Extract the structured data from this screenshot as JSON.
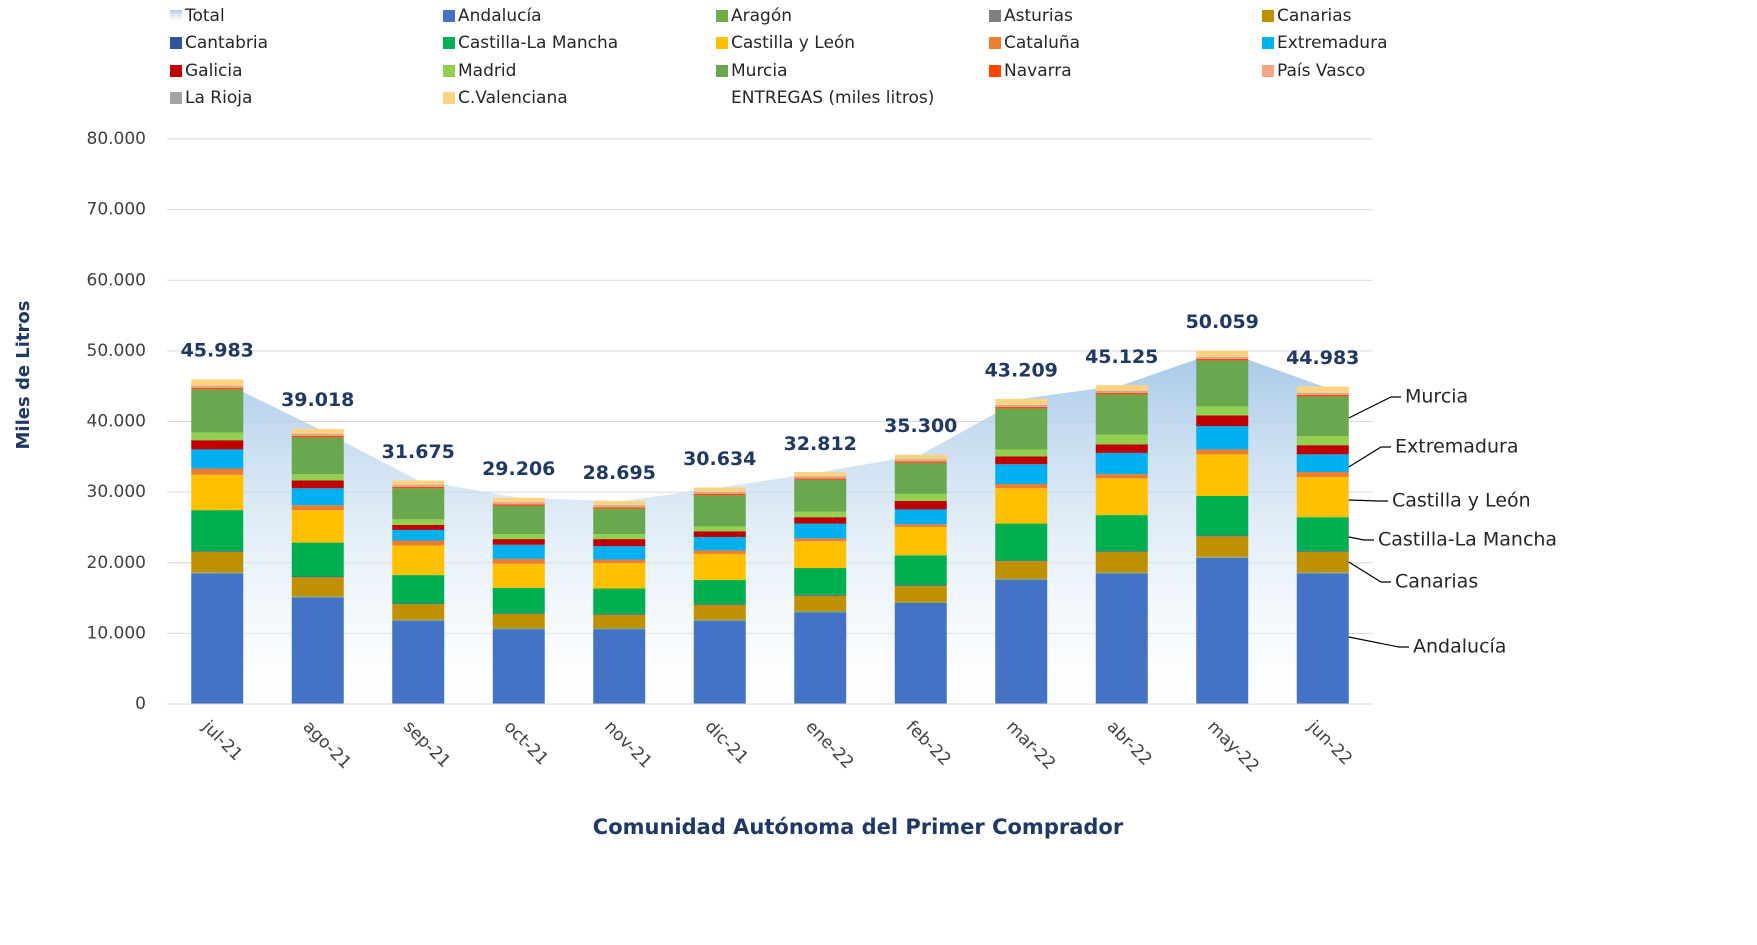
{
  "chart_data": {
    "type": "stacked_bar",
    "x_label": "Comunidad Autónoma del Primer Comprador",
    "y_label": "Miles de Litros",
    "legend_extra": "ENTREGAS (miles litros)",
    "categories": [
      "jul-21",
      "ago-21",
      "sep-21",
      "oct-21",
      "nov-21",
      "dic-21",
      "ene-22",
      "feb-22",
      "mar-22",
      "abr-22",
      "may-22",
      "jun-22"
    ],
    "ylim": [
      0,
      80000
    ],
    "yticks": [
      0,
      {
        "value": 10000,
        "label": "10.000"
      },
      {
        "value": 20000,
        "label": "20.000"
      },
      {
        "value": 30000,
        "label": "30.000"
      },
      {
        "value": 40000,
        "label": "40.000"
      },
      {
        "value": 50000,
        "label": "50.000"
      },
      {
        "value": 60000,
        "label": "60.000"
      },
      {
        "value": 70000,
        "label": "70.000"
      },
      {
        "value": 80000,
        "label": "80.000"
      }
    ],
    "grid": true,
    "total": {
      "name": "Total",
      "color": "#9dc3e6",
      "values": [
        45983,
        39018,
        31675,
        29206,
        28695,
        30634,
        32812,
        35300,
        43209,
        45125,
        50059,
        44983
      ],
      "value_labels": [
        "45.983",
        "39.018",
        "31.675",
        "29.206",
        "28.695",
        "30.634",
        "32.812",
        "35.300",
        "43.209",
        "45.125",
        "50.059",
        "44.983"
      ]
    },
    "series": [
      {
        "name": "Andalucía",
        "color": "#4472c4",
        "values": [
          18500,
          15100,
          11800,
          10600,
          10600,
          11800,
          13000,
          14300,
          17600,
          18500,
          20700,
          18500
        ]
      },
      {
        "name": "Aragón",
        "color": "#70ad47",
        "values": [
          100,
          100,
          100,
          100,
          100,
          100,
          100,
          100,
          100,
          100,
          100,
          100
        ]
      },
      {
        "name": "Asturias",
        "color": "#7f7f7f",
        "values": [
          50,
          50,
          50,
          50,
          50,
          50,
          50,
          50,
          50,
          50,
          50,
          50
        ]
      },
      {
        "name": "Canarias",
        "color": "#bf9000",
        "values": [
          2900,
          2700,
          2200,
          2000,
          1900,
          2100,
          2200,
          2300,
          2500,
          2900,
          2900,
          2900
        ]
      },
      {
        "name": "Cantabria",
        "color": "#2f5597",
        "values": [
          100,
          100,
          100,
          100,
          100,
          100,
          100,
          100,
          100,
          100,
          100,
          100
        ]
      },
      {
        "name": "Castilla-La Mancha",
        "color": "#00b050",
        "values": [
          5800,
          4800,
          4000,
          3600,
          3600,
          3400,
          3800,
          4200,
          5200,
          5100,
          5600,
          4800
        ]
      },
      {
        "name": "Castilla y León",
        "color": "#ffc000",
        "values": [
          5000,
          4600,
          4200,
          3400,
          3600,
          3700,
          3800,
          4000,
          5000,
          5200,
          5900,
          5700
        ]
      },
      {
        "name": "Cataluña",
        "color": "#ed7d31",
        "values": [
          900,
          700,
          700,
          700,
          500,
          500,
          400,
          400,
          600,
          600,
          700,
          700
        ]
      },
      {
        "name": "Extremadura",
        "color": "#00b0f0",
        "values": [
          2700,
          2400,
          1500,
          2000,
          1900,
          1900,
          2100,
          2100,
          2800,
          3000,
          3300,
          2500
        ]
      },
      {
        "name": "Galicia",
        "color": "#c00000",
        "values": [
          1300,
          1100,
          700,
          800,
          1000,
          800,
          900,
          1200,
          1100,
          1200,
          1500,
          1300
        ]
      },
      {
        "name": "Madrid",
        "color": "#92d050",
        "values": [
          1100,
          900,
          800,
          700,
          700,
          700,
          800,
          1000,
          1000,
          1400,
          1300,
          1300
        ]
      },
      {
        "name": "Murcia",
        "color": "#6aa84f",
        "values": [
          6100,
          5200,
          4400,
          4000,
          3600,
          4400,
          4500,
          4400,
          5800,
          5700,
          6500,
          5600
        ]
      },
      {
        "name": "Navarra",
        "color": "#ff4500",
        "values": [
          200,
          200,
          200,
          200,
          200,
          200,
          200,
          200,
          200,
          200,
          200,
          200
        ]
      },
      {
        "name": "País Vasco",
        "color": "#f4a582",
        "values": [
          200,
          200,
          200,
          200,
          200,
          200,
          200,
          200,
          200,
          200,
          200,
          200
        ]
      },
      {
        "name": "La Rioja",
        "color": "#a5a5a5",
        "values": [
          100,
          100,
          100,
          100,
          100,
          100,
          100,
          100,
          100,
          100,
          100,
          100
        ]
      },
      {
        "name": "C.Valenciana",
        "color": "#ffd27f",
        "values": [
          900,
          700,
          600,
          650,
          600,
          600,
          600,
          650,
          850,
          800,
          900,
          900
        ]
      }
    ]
  }
}
